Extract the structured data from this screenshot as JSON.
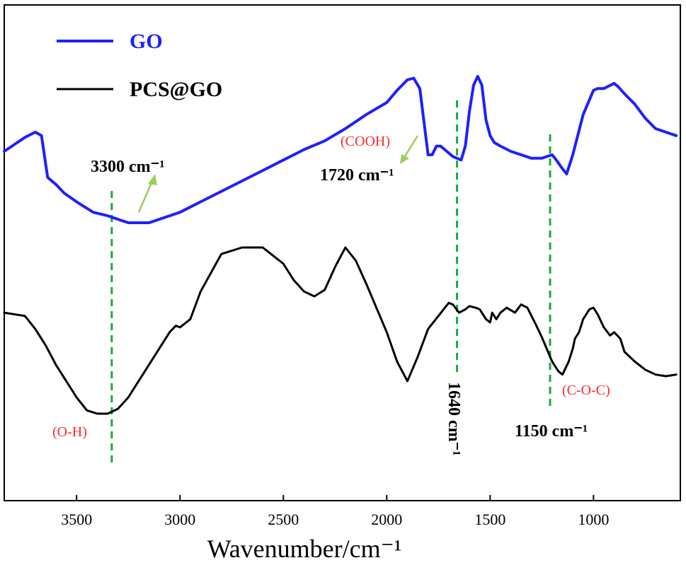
{
  "chart_data": {
    "type": "line",
    "xlabel": "Wavenumber/cm⁻¹",
    "ylabel": "",
    "xlim": [
      3850,
      580
    ],
    "x_reversed": true,
    "y_ticks_shown": false,
    "grid": false,
    "legend_position": "top-left",
    "xticks": [
      3500,
      3000,
      2500,
      2000,
      1500,
      1000
    ],
    "series": [
      {
        "name": "GO",
        "color": "#1f1fff",
        "x": [
          3850,
          3750,
          3700,
          3670,
          3640,
          3600,
          3560,
          3500,
          3420,
          3350,
          3300,
          3250,
          3150,
          3100,
          3000,
          2900,
          2800,
          2700,
          2600,
          2500,
          2400,
          2300,
          2200,
          2100,
          2000,
          1950,
          1900,
          1870,
          1840,
          1800,
          1780,
          1760,
          1740,
          1720,
          1700,
          1680,
          1660,
          1640,
          1620,
          1600,
          1580,
          1560,
          1540,
          1520,
          1500,
          1480,
          1450,
          1400,
          1350,
          1300,
          1250,
          1200,
          1180,
          1150,
          1130,
          1100,
          1050,
          1000,
          980,
          950,
          900,
          880,
          850,
          800,
          750,
          700,
          650,
          600
        ],
        "values": [
          0.57,
          0.65,
          0.68,
          0.66,
          0.42,
          0.38,
          0.33,
          0.28,
          0.22,
          0.2,
          0.18,
          0.16,
          0.16,
          0.18,
          0.22,
          0.28,
          0.34,
          0.4,
          0.46,
          0.52,
          0.58,
          0.63,
          0.7,
          0.78,
          0.85,
          0.92,
          0.98,
          0.99,
          0.93,
          0.55,
          0.55,
          0.6,
          0.6,
          0.58,
          0.56,
          0.54,
          0.53,
          0.52,
          0.6,
          0.8,
          0.95,
          1.0,
          0.95,
          0.75,
          0.66,
          0.62,
          0.6,
          0.57,
          0.55,
          0.53,
          0.53,
          0.55,
          0.52,
          0.47,
          0.44,
          0.55,
          0.78,
          0.92,
          0.93,
          0.93,
          0.96,
          0.94,
          0.9,
          0.84,
          0.76,
          0.7,
          0.68,
          0.66
        ]
      },
      {
        "name": "PCS@GO",
        "color": "#000000",
        "x": [
          3850,
          3750,
          3700,
          3650,
          3600,
          3550,
          3500,
          3450,
          3400,
          3350,
          3300,
          3250,
          3200,
          3150,
          3100,
          3050,
          3020,
          3000,
          2950,
          2900,
          2800,
          2700,
          2600,
          2500,
          2450,
          2400,
          2350,
          2300,
          2250,
          2200,
          2150,
          2100,
          2000,
          1950,
          1900,
          1850,
          1800,
          1750,
          1700,
          1680,
          1650,
          1620,
          1600,
          1570,
          1550,
          1520,
          1500,
          1490,
          1470,
          1450,
          1420,
          1380,
          1350,
          1320,
          1280,
          1250,
          1200,
          1170,
          1150,
          1120,
          1100,
          1090,
          1070,
          1050,
          1020,
          1000,
          980,
          950,
          920,
          900,
          870,
          850,
          800,
          750,
          700,
          650,
          600
        ],
        "values": [
          0.42,
          0.4,
          0.32,
          0.22,
          0.1,
          0.0,
          -0.1,
          -0.18,
          -0.2,
          -0.2,
          -0.17,
          -0.1,
          0.0,
          0.1,
          0.2,
          0.3,
          0.34,
          0.33,
          0.38,
          0.55,
          0.78,
          0.82,
          0.82,
          0.72,
          0.62,
          0.55,
          0.52,
          0.56,
          0.7,
          0.82,
          0.74,
          0.6,
          0.3,
          0.12,
          0.0,
          0.15,
          0.32,
          0.4,
          0.48,
          0.47,
          0.42,
          0.44,
          0.46,
          0.45,
          0.44,
          0.38,
          0.36,
          0.42,
          0.38,
          0.42,
          0.45,
          0.42,
          0.47,
          0.45,
          0.35,
          0.27,
          0.12,
          0.06,
          0.04,
          0.12,
          0.2,
          0.26,
          0.3,
          0.38,
          0.44,
          0.45,
          0.41,
          0.33,
          0.28,
          0.3,
          0.26,
          0.18,
          0.12,
          0.07,
          0.04,
          0.03,
          0.04
        ]
      }
    ],
    "vlines": [
      3330,
      1660,
      1210
    ],
    "annotations": [
      {
        "text": "3300 cm⁻¹",
        "x": 3300,
        "style": "black"
      },
      {
        "text": "(COOH)",
        "x": 1860,
        "style": "red"
      },
      {
        "text": "1720 cm⁻¹",
        "x": 1720,
        "style": "black"
      },
      {
        "text": "(O-H)",
        "x": 3470,
        "style": "red"
      },
      {
        "text": "1640 cm⁻¹",
        "x": 1640,
        "style": "black-vertical"
      },
      {
        "text": "(C-O-C)",
        "x": 1010,
        "style": "red"
      },
      {
        "text": "1150 cm⁻¹",
        "x": 1150,
        "style": "black"
      }
    ]
  }
}
